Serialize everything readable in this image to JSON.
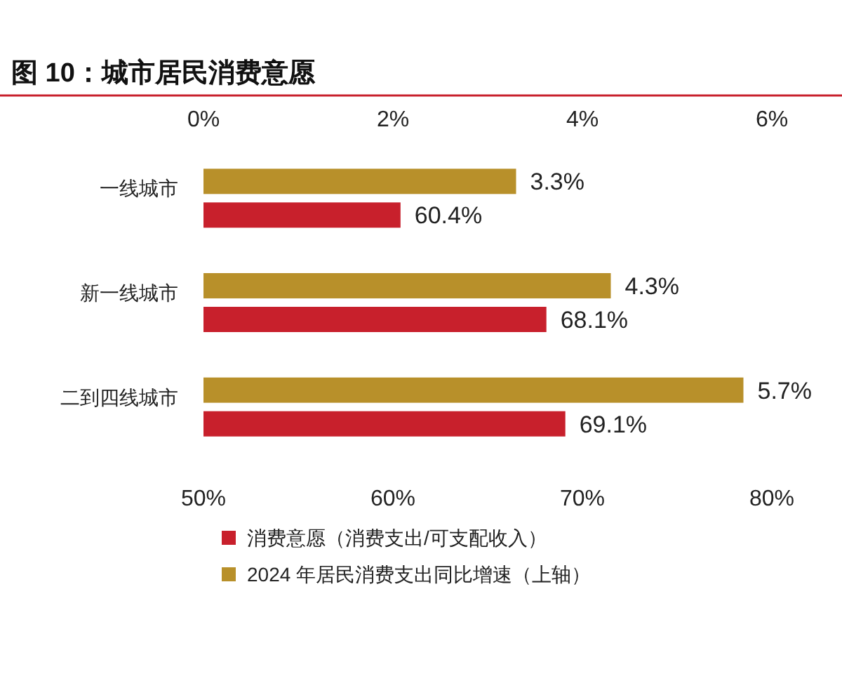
{
  "chart_data": {
    "type": "bar",
    "orientation": "horizontal",
    "title": "图 10：城市居民消费意愿",
    "categories": [
      "一线城市",
      "新一线城市",
      "二到四线城市"
    ],
    "series": [
      {
        "name": "消费意愿（消费支出/可支配收入）",
        "color": "#c8202c",
        "values": [
          60.4,
          68.1,
          69.1
        ],
        "value_labels": [
          "60.4%",
          "68.1%",
          "69.1%"
        ]
      },
      {
        "name": "2024 年居民消费支出同比增速（上轴）",
        "color": "#b8902a",
        "axis": "x2",
        "values": [
          3.3,
          4.3,
          5.7
        ],
        "value_labels": [
          "3.3%",
          "4.3%",
          "5.7%"
        ]
      }
    ],
    "xlim": [
      50,
      80
    ],
    "xticks": [
      {
        "value": 50,
        "label": "50%"
      },
      {
        "value": 60,
        "label": "60%"
      },
      {
        "value": 70,
        "label": "70%"
      },
      {
        "value": 80,
        "label": "80%"
      }
    ],
    "x2lim": [
      0,
      6
    ],
    "x2ticks": [
      {
        "value": 0,
        "label": "0%"
      },
      {
        "value": 2,
        "label": "2%"
      },
      {
        "value": 4,
        "label": "4%"
      },
      {
        "value": 6,
        "label": "6%"
      }
    ],
    "legend": "bottom",
    "grid": false
  }
}
